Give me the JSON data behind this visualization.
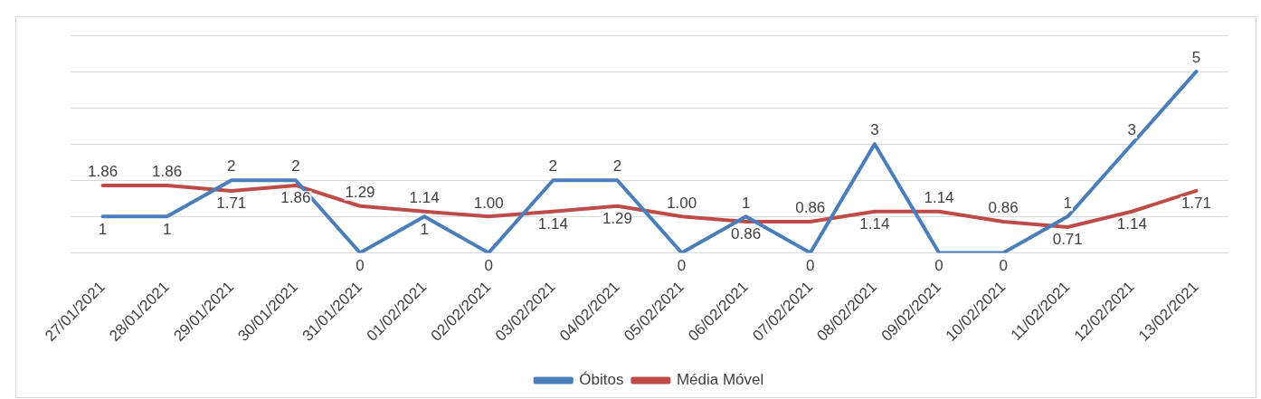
{
  "chart_data": {
    "type": "line",
    "categories": [
      "27/01/2021",
      "28/01/2021",
      "29/01/2021",
      "30/01/2021",
      "31/01/2021",
      "01/02/2021",
      "02/02/2021",
      "03/02/2021",
      "04/02/2021",
      "05/02/2021",
      "06/02/2021",
      "07/02/2021",
      "08/02/2021",
      "09/02/2021",
      "10/02/2021",
      "11/02/2021",
      "12/02/2021",
      "13/02/2021"
    ],
    "series": [
      {
        "name": "Óbitos",
        "color": "#4a7ebb",
        "values": [
          1,
          1,
          2,
          2,
          0,
          1,
          0,
          2,
          2,
          0,
          1,
          0,
          3,
          0,
          0,
          1,
          3,
          5
        ]
      },
      {
        "name": "Média Móvel",
        "color": "#be4b48",
        "values": [
          1.86,
          1.86,
          1.71,
          1.86,
          1.29,
          1.14,
          1.0,
          1.14,
          1.29,
          1.0,
          0.86,
          0.86,
          1.14,
          1.14,
          0.86,
          0.71,
          1.14,
          1.71
        ],
        "value_labels": [
          "1.86",
          "1.86",
          "1.71",
          "1.86",
          "1.29",
          "1.14",
          "1.00",
          "1.14",
          "1.29",
          "1.00",
          "0.86",
          "0.86",
          "1.14",
          "1.14",
          "0.86",
          "0.71",
          "1.14",
          "1.71"
        ]
      }
    ],
    "ylim": [
      0,
      6
    ],
    "yticks": [
      0,
      1,
      2,
      3,
      4,
      5,
      6
    ],
    "tick_labels": "x",
    "grid": "y",
    "legend": "bottom",
    "marker": "none",
    "line_style": "solid",
    "data_labels": true
  }
}
